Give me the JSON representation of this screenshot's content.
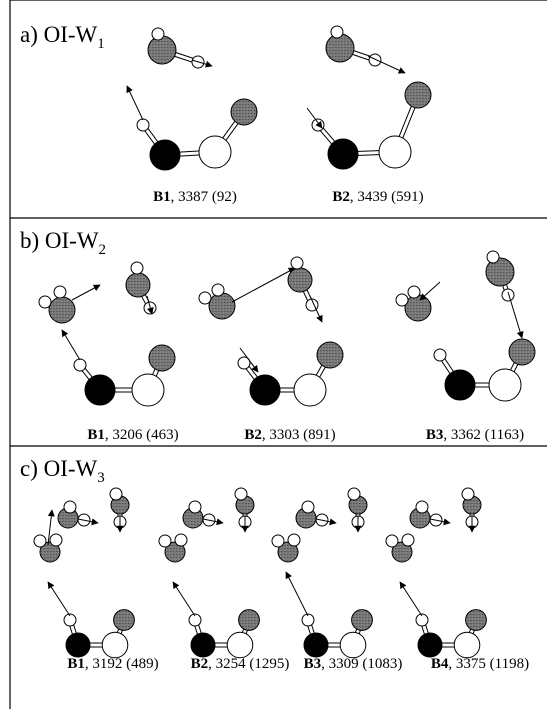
{
  "panels": [
    {
      "title": "a) OI-W",
      "title_subscript": "1",
      "modes": [
        {
          "name": "B1",
          "text": ", 3387 (92)"
        },
        {
          "name": "B2",
          "text": ", 3439 (591)"
        }
      ]
    },
    {
      "title": "b) OI-W",
      "title_subscript": "2",
      "modes": [
        {
          "name": "B1",
          "text": ", 3206 (463)"
        },
        {
          "name": "B2",
          "text": ", 3303 (891)"
        },
        {
          "name": "B3",
          "text": ", 3362 (1163)"
        }
      ]
    },
    {
      "title": "c) OI-W",
      "title_subscript": "3",
      "modes": [
        {
          "name": "B1",
          "text": ", 3192 (489)"
        },
        {
          "name": "B2",
          "text": ", 3254 (1295)"
        },
        {
          "name": "B3",
          "text": ", 3309 (1083)"
        },
        {
          "name": "B4",
          "text": ", 3375 (1198)"
        }
      ]
    }
  ]
}
